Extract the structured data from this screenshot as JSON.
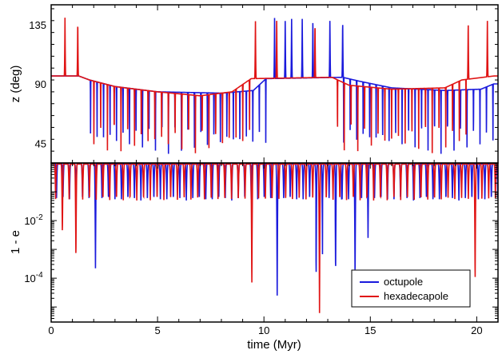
{
  "chart_data": {
    "type": "line",
    "xlabel": "time (Myr)",
    "xlim": [
      0,
      21
    ],
    "xticks": [
      0,
      5,
      10,
      15,
      20
    ],
    "x_minor_per_major": 5,
    "panels": [
      {
        "name": "inclination",
        "ylabel": "z (deg)",
        "ylim": [
          30,
          150
        ],
        "scale": "linear",
        "yticks": [
          {
            "v": 45,
            "label": "45"
          },
          {
            "v": 90,
            "label": "90"
          },
          {
            "v": 135,
            "label": "135"
          }
        ],
        "y_minor_step": 9
      },
      {
        "name": "eccentricity",
        "ylabel": "1 - e",
        "ylim": [
          3e-06,
          1
        ],
        "scale": "log",
        "yticks": [
          {
            "v": 0.01,
            "base": "10",
            "exp": "-2"
          },
          {
            "v": 0.0001,
            "base": "10",
            "exp": "-4"
          }
        ]
      }
    ],
    "series": [
      {
        "name": "octupole",
        "color": "#1a1adc",
        "panel_z": {
          "period": 0.305,
          "start": 1.7,
          "baseline_points": [
            [
              0,
              96
            ],
            [
              1.3,
              96
            ],
            [
              1.8,
              93
            ],
            [
              3,
              88
            ],
            [
              5,
              84
            ],
            [
              8,
              83
            ],
            [
              9.5,
              85
            ],
            [
              10.1,
              94
            ],
            [
              13.7,
              95
            ],
            [
              14.5,
              92
            ],
            [
              16,
              87
            ],
            [
              18.5,
              85
            ],
            [
              20.2,
              86
            ],
            [
              20.8,
              90
            ]
          ],
          "dip_to": 37,
          "quiet_from": 10.1,
          "quiet_to": 13.7,
          "spikes": [
            [
              10.5,
              140
            ],
            [
              11.0,
              141
            ],
            [
              11.3,
              141
            ],
            [
              11.8,
              141
            ],
            [
              12.3,
              141
            ],
            [
              13.1,
              141
            ],
            [
              13.7,
              141
            ]
          ]
        },
        "panel_e": {
          "period": 0.305,
          "start": 0.1,
          "deep_dips": [
            [
              1.95,
              0.00022
            ],
            [
              10.7,
              2.5e-05
            ],
            [
              12.6,
              9e-05
            ],
            [
              13.5,
              0.00011
            ],
            [
              14.2,
              8e-05
            ],
            [
              15.0,
              0.0025
            ]
          ]
        }
      },
      {
        "name": "hexadecapole",
        "color": "#e01414",
        "panel_z": {
          "period": 0.318,
          "start": 1.85,
          "baseline_points": [
            [
              0,
              96
            ],
            [
              1.3,
              96
            ],
            [
              1.8,
              93
            ],
            [
              3,
              88
            ],
            [
              5,
              84
            ],
            [
              7,
              81
            ],
            [
              8.5,
              84
            ],
            [
              9.4,
              94
            ],
            [
              13.2,
              95
            ],
            [
              14,
              89
            ],
            [
              16,
              86
            ],
            [
              18.5,
              87
            ],
            [
              19.3,
              93
            ],
            [
              20.8,
              96
            ]
          ],
          "dip_to": 37,
          "quiet_from": 9.4,
          "quiet_to": 13.2,
          "quiet_from2": 19.5,
          "spikes": [
            [
              0.65,
              141
            ],
            [
              1.25,
              141
            ],
            [
              9.6,
              140
            ],
            [
              10.6,
              142
            ],
            [
              12.4,
              140
            ],
            [
              19.6,
              140
            ],
            [
              20.5,
              141
            ]
          ]
        },
        "panel_e": {
          "period": 0.318,
          "start": 0.05,
          "deep_dips": [
            [
              0.55,
              0.003
            ],
            [
              1.25,
              0.0004
            ],
            [
              9.5,
              4e-05
            ],
            [
              12.7,
              4.5e-06
            ],
            [
              19.9,
              6e-05
            ]
          ]
        }
      }
    ],
    "legend": {
      "placement": "bottom-right of lower panel",
      "entries": [
        "octupole",
        "hexadecapole"
      ]
    }
  }
}
